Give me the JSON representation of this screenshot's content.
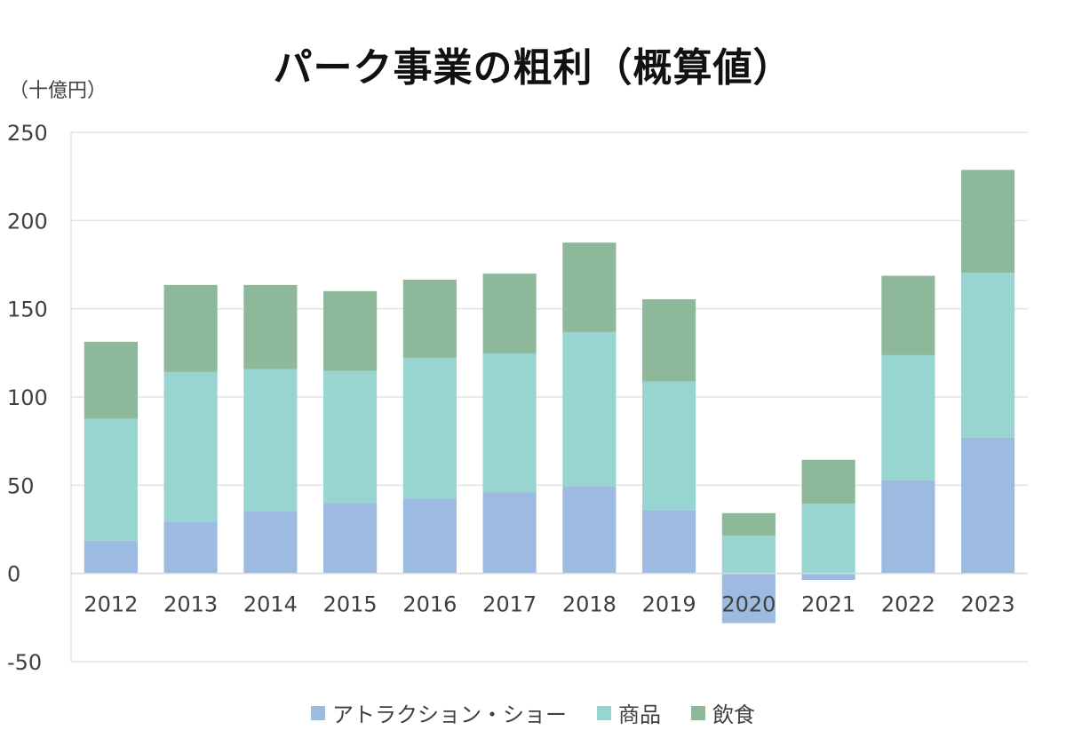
{
  "chart_data": {
    "type": "bar",
    "stacked": true,
    "title": "パーク事業の粗利（概算値）",
    "ylabel": "（十億円）",
    "xlabel": "",
    "ylim": [
      -50,
      250
    ],
    "yticks": [
      250,
      200,
      150,
      100,
      50,
      0,
      -50
    ],
    "grid": true,
    "legend_position": "bottom",
    "categories": [
      "2012",
      "2013",
      "2014",
      "2015",
      "2016",
      "2017",
      "2018",
      "2019",
      "2020",
      "2021",
      "2022",
      "2023"
    ],
    "series": [
      {
        "name": "アトラクション・ショー",
        "color": "#9dbbe0",
        "values": [
          18.6,
          29.0,
          35.4,
          39.9,
          42.4,
          45.9,
          49.5,
          35.9,
          -28.2,
          -3.7,
          52.8,
          77.0
        ]
      },
      {
        "name": "商品",
        "color": "#98d4d0",
        "values": [
          69.1,
          85.2,
          80.3,
          74.8,
          79.8,
          78.8,
          87.3,
          72.8,
          21.3,
          39.6,
          70.9,
          93.4
        ]
      },
      {
        "name": "飲食",
        "color": "#8eb89a",
        "values": [
          43.6,
          49.3,
          47.8,
          45.3,
          44.3,
          45.2,
          50.7,
          46.7,
          12.9,
          24.8,
          45.0,
          58.3
        ]
      }
    ]
  }
}
